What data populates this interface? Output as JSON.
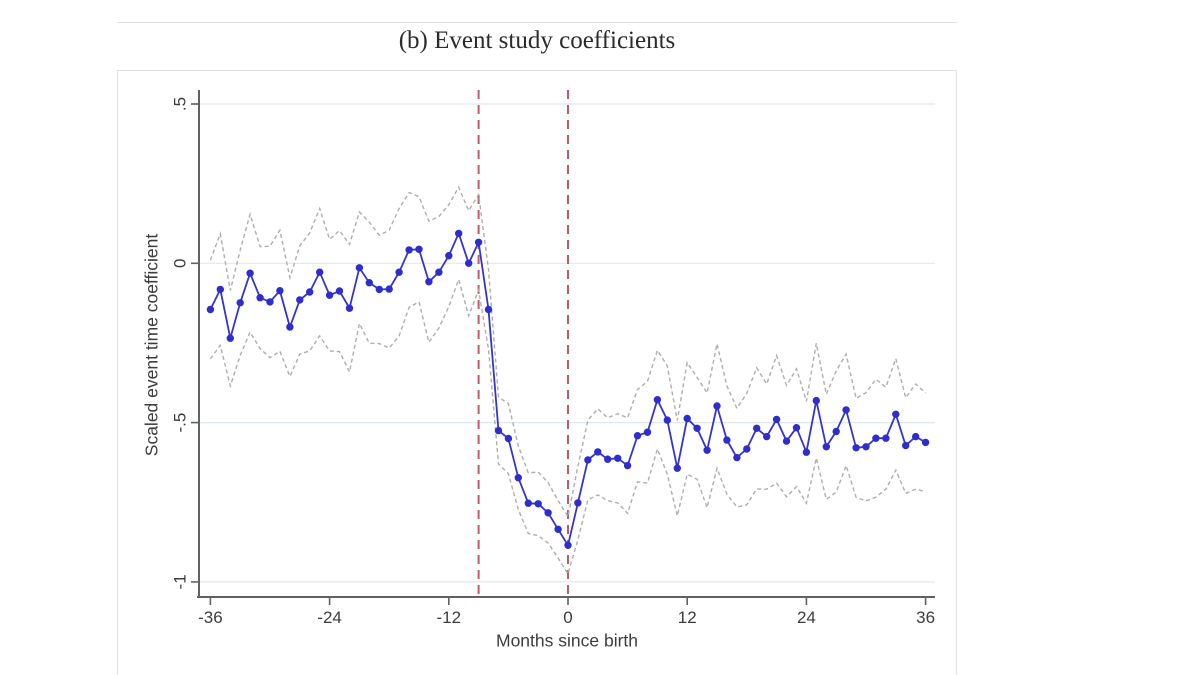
{
  "figure": {
    "title": "(b) Event study coefficients"
  },
  "chart_data": {
    "type": "line",
    "title": "(b) Event study coefficients",
    "xlabel": "Months since birth",
    "ylabel": "Scaled event time coefficient",
    "xlim": [
      -38,
      37
    ],
    "ylim": [
      -1.05,
      0.55
    ],
    "x_ticks": [
      -36,
      -24,
      -12,
      0,
      12,
      24,
      36
    ],
    "y_ticks": [
      0.5,
      0,
      -0.5,
      -1
    ],
    "y_tick_labels": [
      ".5",
      "0",
      "-.5",
      "-1"
    ],
    "grid": true,
    "legend_position": "none",
    "vertical_reference_lines": [
      -9,
      0
    ],
    "months": [
      -36,
      -35,
      -34,
      -33,
      -32,
      -31,
      -30,
      -29,
      -28,
      -27,
      -26,
      -25,
      -24,
      -23,
      -22,
      -21,
      -20,
      -19,
      -18,
      -17,
      -16,
      -15,
      -14,
      -13,
      -12,
      -11,
      -10,
      -9,
      -8,
      -7,
      -6,
      -5,
      -4,
      -3,
      -2,
      -1,
      0,
      1,
      2,
      3,
      4,
      5,
      6,
      7,
      8,
      9,
      10,
      11,
      12,
      13,
      14,
      15,
      16,
      17,
      18,
      19,
      20,
      21,
      22,
      23,
      24,
      25,
      26,
      27,
      28,
      29,
      30,
      31,
      32,
      33,
      34,
      35,
      36
    ],
    "series": [
      {
        "name": "Scaled event-time coefficient",
        "style": "solid-with-markers",
        "color": "#3434d2",
        "values": [
          -0.145,
          -0.082,
          -0.235,
          -0.124,
          -0.031,
          -0.108,
          -0.121,
          -0.086,
          -0.2,
          -0.115,
          -0.09,
          -0.028,
          -0.1,
          -0.087,
          -0.141,
          -0.014,
          -0.061,
          -0.082,
          -0.081,
          -0.028,
          0.042,
          0.044,
          -0.058,
          -0.028,
          0.024,
          0.094,
          0.0,
          0.066,
          -0.145,
          -0.525,
          -0.55,
          -0.673,
          -0.753,
          -0.755,
          -0.783,
          -0.835,
          -0.885,
          -0.752,
          -0.617,
          -0.592,
          -0.615,
          -0.612,
          -0.635,
          -0.541,
          -0.53,
          -0.428,
          -0.492,
          -0.643,
          -0.487,
          -0.518,
          -0.587,
          -0.448,
          -0.555,
          -0.61,
          -0.583,
          -0.518,
          -0.544,
          -0.49,
          -0.558,
          -0.516,
          -0.593,
          -0.431,
          -0.576,
          -0.528,
          -0.46,
          -0.579,
          -0.576,
          -0.549,
          -0.549,
          -0.474,
          -0.572,
          -0.544,
          -0.562
        ]
      },
      {
        "name": "95% CI upper",
        "style": "dashed",
        "color": "#aeaeae",
        "values": [
          0.01,
          0.093,
          -0.085,
          0.041,
          0.154,
          0.052,
          0.054,
          0.104,
          -0.045,
          0.055,
          0.095,
          0.172,
          0.075,
          0.103,
          0.059,
          0.161,
          0.129,
          0.088,
          0.104,
          0.172,
          0.222,
          0.209,
          0.132,
          0.147,
          0.184,
          0.239,
          0.165,
          0.216,
          -0.02,
          -0.42,
          -0.44,
          -0.573,
          -0.658,
          -0.655,
          -0.688,
          -0.745,
          -0.795,
          -0.637,
          -0.492,
          -0.457,
          -0.485,
          -0.472,
          -0.485,
          -0.396,
          -0.37,
          -0.273,
          -0.322,
          -0.493,
          -0.312,
          -0.358,
          -0.407,
          -0.253,
          -0.385,
          -0.455,
          -0.408,
          -0.328,
          -0.379,
          -0.29,
          -0.383,
          -0.331,
          -0.433,
          -0.251,
          -0.411,
          -0.338,
          -0.285,
          -0.424,
          -0.406,
          -0.364,
          -0.389,
          -0.299,
          -0.422,
          -0.379,
          -0.407
        ]
      },
      {
        "name": "95% CI lower",
        "style": "dashed",
        "color": "#aeaeae",
        "values": [
          -0.3,
          -0.257,
          -0.385,
          -0.289,
          -0.216,
          -0.268,
          -0.296,
          -0.276,
          -0.355,
          -0.285,
          -0.275,
          -0.228,
          -0.275,
          -0.277,
          -0.341,
          -0.189,
          -0.251,
          -0.252,
          -0.266,
          -0.228,
          -0.138,
          -0.121,
          -0.248,
          -0.203,
          -0.136,
          -0.051,
          -0.165,
          -0.084,
          -0.27,
          -0.63,
          -0.66,
          -0.773,
          -0.848,
          -0.855,
          -0.878,
          -0.925,
          -0.975,
          -0.867,
          -0.742,
          -0.727,
          -0.745,
          -0.752,
          -0.785,
          -0.686,
          -0.69,
          -0.583,
          -0.662,
          -0.793,
          -0.662,
          -0.678,
          -0.767,
          -0.643,
          -0.725,
          -0.765,
          -0.758,
          -0.708,
          -0.709,
          -0.69,
          -0.733,
          -0.701,
          -0.753,
          -0.611,
          -0.741,
          -0.718,
          -0.635,
          -0.734,
          -0.746,
          -0.734,
          -0.709,
          -0.649,
          -0.722,
          -0.709,
          -0.717
        ]
      }
    ],
    "colors": {
      "coefficient": "#3434d2",
      "marker": "#2e2ecc",
      "ci": "#aeaeae",
      "reference_line": "#c0596a",
      "gridline": "#e0e8ef",
      "axis": "#5e6166",
      "tick_text": "#3d3d3d",
      "title_text": "#2b2b2b",
      "figure_border": "#dfe3e7"
    }
  }
}
